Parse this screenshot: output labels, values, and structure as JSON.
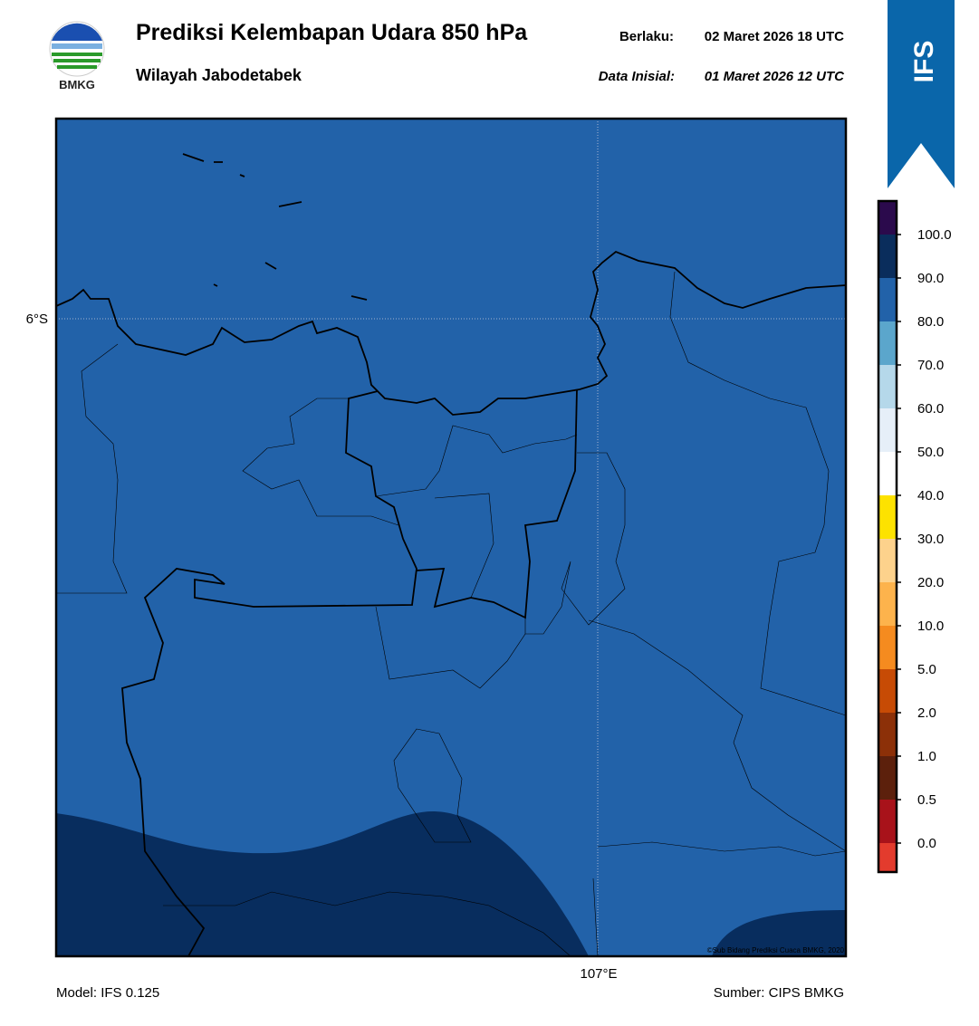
{
  "header": {
    "title": "Prediksi Kelembapan Udara 850 hPa",
    "subtitle": "Wilayah Jabodetabek",
    "valid_label": "Berlaku:",
    "valid_time": "02 Maret 2026 18 UTC",
    "init_label": "Data Inisial:",
    "init_time": "01 Maret 2026 12 UTC",
    "logo_text": "BMKG",
    "badge": "IFS"
  },
  "map": {
    "lat_label": "6°S",
    "lon_label": "107°E",
    "copyright": "©Sub Bidang Prediksi Cuaca BMKG, 2020",
    "base_color": "#2262a9",
    "dark_color": "#082d5e"
  },
  "colorbar": {
    "labels": [
      "0.0",
      "0.5",
      "1.0",
      "2.0",
      "5.0",
      "10.0",
      "20.0",
      "30.0",
      "40.0",
      "50.0",
      "60.0",
      "70.0",
      "80.0",
      "90.0",
      "100.0"
    ],
    "colors": [
      "#e33b2d",
      "#a8121a",
      "#5c200c",
      "#8c3008",
      "#c74b05",
      "#f58b1f",
      "#fdb34c",
      "#fdd28c",
      "#fde200",
      "#ffffff",
      "#e6eff8",
      "#b5d8ea",
      "#5ba6cc",
      "#2262a9",
      "#0a2d5c",
      "#2b0a4c"
    ]
  },
  "footer": {
    "model": "Model: IFS 0.125",
    "source": "Sumber: CIPS BMKG"
  }
}
